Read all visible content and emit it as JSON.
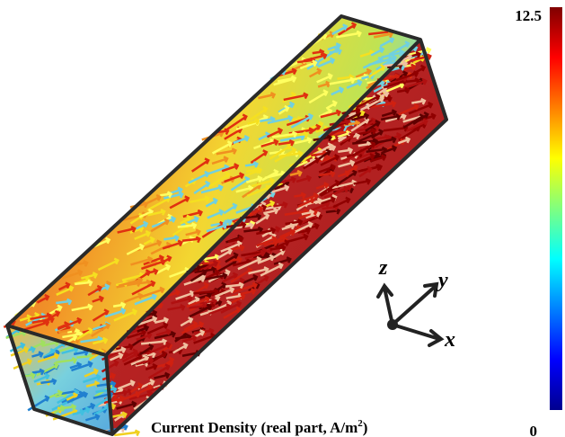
{
  "caption": {
    "text": "Current Density (real part, A/m",
    "superscript": "2",
    "closing": ")"
  },
  "colorbar": {
    "max": "12.5",
    "min": "0"
  },
  "axes": {
    "z": "z",
    "y": "y",
    "x": "x"
  }
}
